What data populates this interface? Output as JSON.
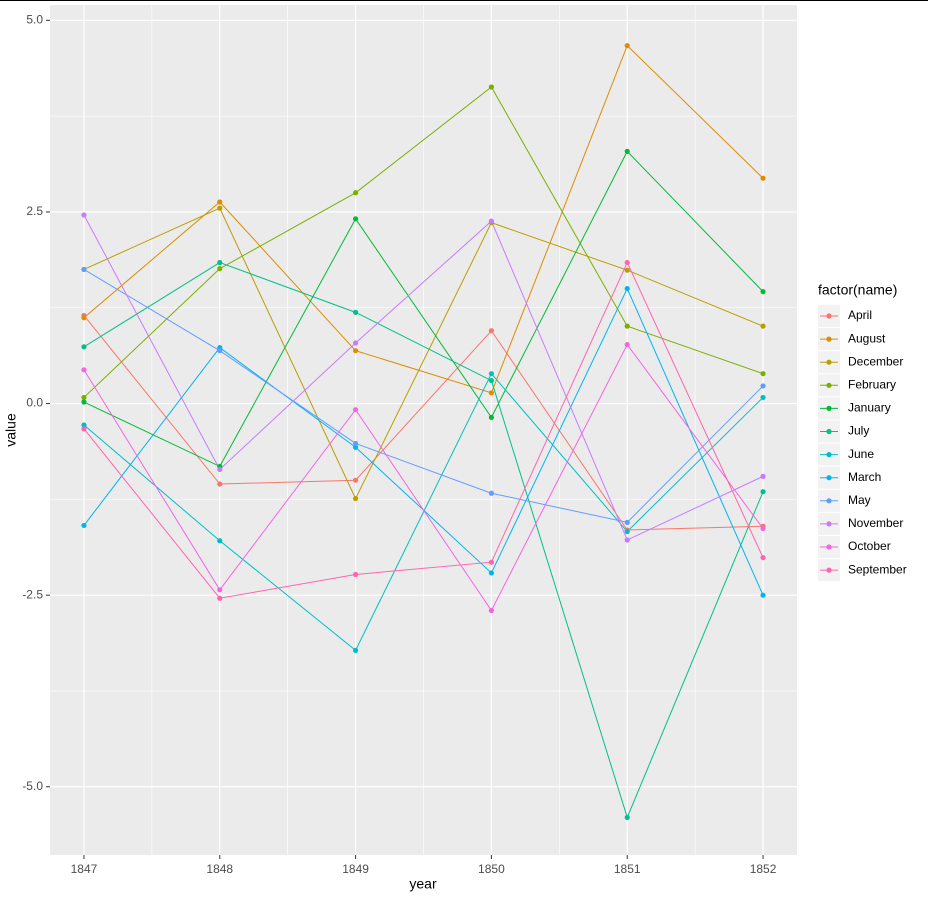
{
  "chart_data": {
    "type": "line",
    "x_label": "year",
    "y_label": "value",
    "legend_title": "factor(name)",
    "grid": true,
    "x": [
      1847,
      1848,
      1849,
      1850,
      1851,
      1852
    ],
    "xlim": [
      1846.75,
      1852.25
    ],
    "xticks": [
      1847,
      1848,
      1849,
      1850,
      1851,
      1852
    ],
    "ylim": [
      -5.89,
      5.2
    ],
    "yticks": [
      {
        "value": -5,
        "label": "-5.0"
      },
      {
        "value": -2.5,
        "label": "-2.5"
      },
      {
        "value": 0,
        "label": "0.0"
      },
      {
        "value": 2.5,
        "label": "2.5"
      },
      {
        "value": 5,
        "label": "5.0"
      }
    ],
    "series": [
      {
        "name": "April",
        "color": "#F8766D",
        "values": [
          1.15,
          -1.05,
          -1.0,
          0.95,
          -1.65,
          -1.6
        ]
      },
      {
        "name": "August",
        "color": "#DE8C00",
        "values": [
          1.12,
          2.63,
          0.69,
          0.14,
          4.67,
          2.94
        ]
      },
      {
        "name": "December",
        "color": "#B79F00",
        "values": [
          1.75,
          2.55,
          -1.24,
          2.36,
          1.74,
          1.01
        ]
      },
      {
        "name": "February",
        "color": "#7CAE00",
        "values": [
          0.08,
          1.76,
          2.75,
          4.13,
          1.01,
          0.39
        ]
      },
      {
        "name": "January",
        "color": "#00BA38",
        "values": [
          0.02,
          -0.82,
          2.41,
          -0.18,
          3.29,
          1.46
        ]
      },
      {
        "name": "July",
        "color": "#00C08B",
        "values": [
          0.74,
          1.84,
          1.19,
          0.3,
          -5.4,
          -1.15
        ]
      },
      {
        "name": "June",
        "color": "#00BFC4",
        "values": [
          -0.28,
          -1.79,
          -3.22,
          0.39,
          -1.67,
          0.08
        ]
      },
      {
        "name": "March",
        "color": "#00B4F0",
        "values": [
          -1.59,
          0.73,
          -0.57,
          -2.21,
          1.5,
          -2.5
        ]
      },
      {
        "name": "May",
        "color": "#619CFF",
        "values": [
          1.75,
          0.69,
          -0.52,
          -1.17,
          -1.55,
          0.23
        ]
      },
      {
        "name": "November",
        "color": "#C77CFF",
        "values": [
          2.46,
          -0.86,
          0.79,
          2.38,
          -1.78,
          -0.95
        ]
      },
      {
        "name": "October",
        "color": "#F564E3",
        "values": [
          0.44,
          -2.43,
          -0.08,
          -2.7,
          0.77,
          -1.63
        ]
      },
      {
        "name": "September",
        "color": "#FF64B0",
        "values": [
          -0.33,
          -2.54,
          -2.23,
          -2.07,
          1.84,
          -2.01
        ]
      }
    ]
  }
}
